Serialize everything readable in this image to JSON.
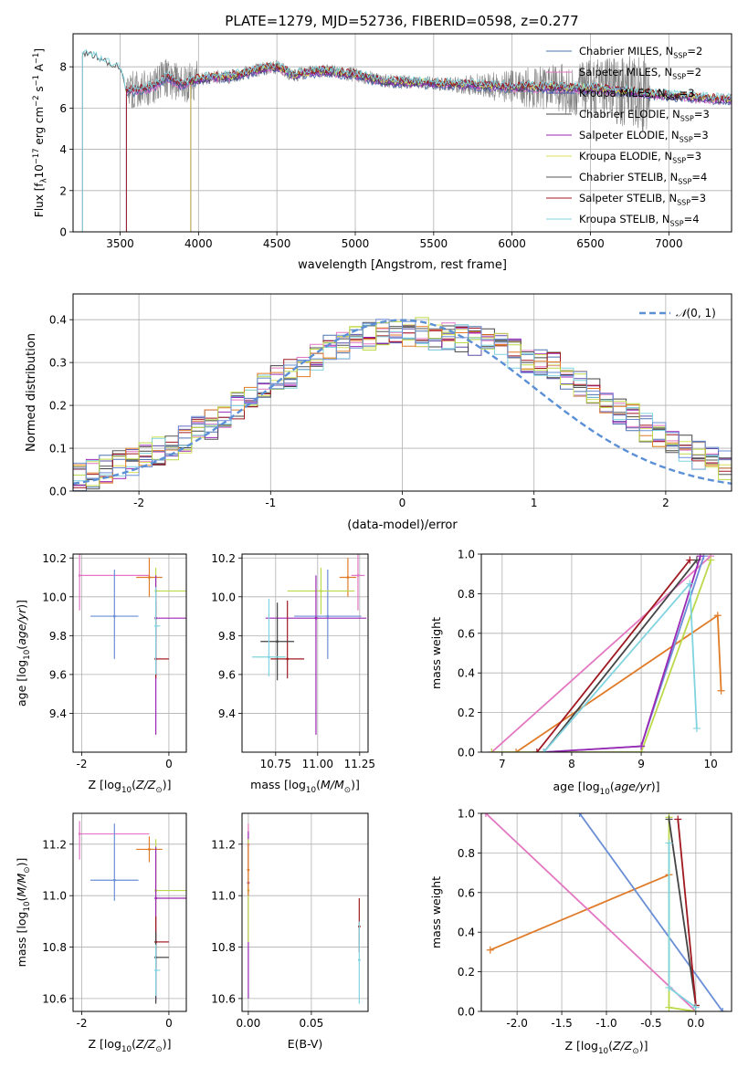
{
  "figure": {
    "title": "PLATE=1279, MJD=52736, FIBERID=0598, z=0.277"
  },
  "colors": [
    "#4c72b0",
    "#e377c2",
    "#5b4fa8",
    "#444444",
    "#9b27b5",
    "#d8e15a",
    "#555555",
    "#a01820",
    "#80d4df",
    "#e07b28",
    "#bcd94a",
    "#6a8fd6",
    "#808080"
  ],
  "chart_data": [
    {
      "id": "spectrum",
      "type": "line",
      "xlabel": "wavelength [Angstrom, rest frame]",
      "ylabel": "Flux [f$_\\lambda$10$^{-17}$ erg cm$^{-2}$ s$^{-1}$ A$^{-1}$]",
      "ylabel_parts": [
        "Flux [f",
        "λ",
        "10",
        "−17",
        " erg cm",
        "−2",
        " s",
        "−1",
        " A",
        "−1",
        "]"
      ],
      "xlim": [
        3200,
        7400
      ],
      "ylim": [
        0,
        9.6
      ],
      "xticks": [
        3500,
        4000,
        4500,
        5000,
        5500,
        6000,
        6500,
        7000
      ],
      "yticks": [
        0,
        2,
        4,
        6,
        8
      ],
      "legend_position": "upper right",
      "series": [
        {
          "name": "Chabrier MILES, N$_{SSP}$=2",
          "label_main": "Chabrier MILES, N",
          "label_sub": "SSP",
          "label_tail": "=2",
          "color": "#4c72b0",
          "xstart": 3540
        },
        {
          "name": "Salpeter MILES, N$_{SSP}$=2",
          "label_main": "Salpeter MILES, N",
          "label_sub": "SSP",
          "label_tail": "=2",
          "color": "#e377c2",
          "xstart": 3540
        },
        {
          "name": "Kroupa MILES, N$_{SSP}$=3",
          "label_main": "Kroupa MILES, N",
          "label_sub": "SSP",
          "label_tail": "=3",
          "color": "#5b4fa8",
          "xstart": 3540
        },
        {
          "name": "Chabrier ELODIE, N$_{SSP}$=3",
          "label_main": "Chabrier ELODIE, N",
          "label_sub": "SSP",
          "label_tail": "=3",
          "color": "#444444",
          "xstart": 3950
        },
        {
          "name": "Salpeter ELODIE, N$_{SSP}$=3",
          "label_main": "Salpeter ELODIE, N",
          "label_sub": "SSP",
          "label_tail": "=3",
          "color": "#9b27b5",
          "xstart": 3950
        },
        {
          "name": "Kroupa ELODIE, N$_{SSP}$=3",
          "label_main": "Kroupa ELODIE, N",
          "label_sub": "SSP",
          "label_tail": "=3",
          "color": "#d8e15a",
          "xstart": 3950
        },
        {
          "name": "Chabrier STELIB, N$_{SSP}$=4",
          "label_main": "Chabrier STELIB, N",
          "label_sub": "SSP",
          "label_tail": "=4",
          "color": "#555555",
          "xstart": 3260
        },
        {
          "name": "Salpeter STELIB, N$_{SSP}$=3",
          "label_main": "Salpeter STELIB, N",
          "label_sub": "SSP",
          "label_tail": "=3",
          "color": "#a01820",
          "xstart": 3540
        },
        {
          "name": "Kroupa STELIB, N$_{SSP}$=4",
          "label_main": "Kroupa STELIB, N",
          "label_sub": "SSP",
          "label_tail": "=4",
          "color": "#80d4df",
          "xstart": 3260
        }
      ],
      "data_color": "#808080",
      "data_xrange": [
        3540,
        6880
      ],
      "continuum": [
        [
          3260,
          8.6
        ],
        [
          3320,
          8.55
        ],
        [
          3400,
          8.2
        ],
        [
          3500,
          7.9
        ],
        [
          3540,
          6.8
        ],
        [
          3700,
          7.0
        ],
        [
          3800,
          7.5
        ],
        [
          3900,
          7.1
        ],
        [
          4000,
          7.4
        ],
        [
          4100,
          7.5
        ],
        [
          4200,
          7.5
        ],
        [
          4300,
          7.7
        ],
        [
          4400,
          7.9
        ],
        [
          4500,
          8.0
        ],
        [
          4600,
          7.6
        ],
        [
          4800,
          7.8
        ],
        [
          5000,
          7.6
        ],
        [
          5200,
          7.3
        ],
        [
          5500,
          7.2
        ],
        [
          5800,
          7.1
        ],
        [
          6000,
          7.0
        ],
        [
          6300,
          7.0
        ],
        [
          6600,
          6.9
        ],
        [
          7000,
          6.6
        ],
        [
          7400,
          6.4
        ]
      ]
    },
    {
      "id": "residuals",
      "type": "histogram",
      "xlabel": "(data-model)/error",
      "ylabel": "Normed distribution",
      "xlim": [
        -2.5,
        2.5
      ],
      "ylim": [
        0,
        0.46
      ],
      "xticks": [
        -2,
        -1,
        0,
        1,
        2
      ],
      "yticks": [
        0.0,
        0.1,
        0.2,
        0.3,
        0.4
      ],
      "bin_width": 0.1,
      "legend_label_prefix": "𝒩",
      "legend_label_args": "(0, 1)",
      "legend_position": "upper right",
      "gaussian": {
        "mean": 0,
        "sigma": 1,
        "color": "#5b8fd6"
      },
      "envelope": [
        0.035,
        0.04,
        0.05,
        0.06,
        0.07,
        0.08,
        0.095,
        0.105,
        0.12,
        0.14,
        0.155,
        0.175,
        0.2,
        0.215,
        0.24,
        0.26,
        0.275,
        0.3,
        0.31,
        0.33,
        0.34,
        0.35,
        0.36,
        0.37,
        0.37,
        0.37,
        0.37,
        0.36,
        0.36,
        0.355,
        0.35,
        0.345,
        0.335,
        0.32,
        0.31,
        0.3,
        0.29,
        0.27,
        0.255,
        0.235,
        0.215,
        0.19,
        0.17,
        0.15,
        0.13,
        0.11,
        0.1,
        0.085,
        0.07,
        0.06
      ],
      "hist_colors": [
        "#4c72b0",
        "#e377c2",
        "#5b4fa8",
        "#444444",
        "#9b27b5",
        "#d8e15a",
        "#555555",
        "#a01820",
        "#80d4df",
        "#e07b28",
        "#bcd94a",
        "#6a8fd6"
      ]
    },
    {
      "id": "age-vs-Z",
      "type": "scatter",
      "xlabel": "Z [log$_{10}$(Z/Z$_\\odot$)]",
      "ylabel": "age [log$_{10}$(age/yr)]",
      "xlim": [
        -2.2,
        0.4
      ],
      "ylim": [
        9.2,
        10.22
      ],
      "xticks": [
        -2,
        0
      ],
      "yticks": [
        9.4,
        9.6,
        9.8,
        10.0,
        10.2
      ],
      "points": [
        {
          "x": -2.05,
          "y": 10.11,
          "xerr": [
            0,
            1.6
          ],
          "yerr": [
            0.18,
            0.12
          ],
          "color": "#e377c2"
        },
        {
          "x": -1.25,
          "y": 9.9,
          "xerr": [
            0.55,
            0.55
          ],
          "yerr": [
            0.22,
            0.24
          ],
          "color": "#6a8fd6"
        },
        {
          "x": -0.45,
          "y": 10.1,
          "xerr": [
            0.3,
            0.3
          ],
          "yerr": [
            0.1,
            0.1
          ],
          "color": "#e07b28"
        },
        {
          "x": -0.3,
          "y": 10.03,
          "xerr": [
            0,
            0.75
          ],
          "yerr": [
            0.12,
            0.12
          ],
          "color": "#bcd94a"
        },
        {
          "x": -0.3,
          "y": 9.89,
          "xerr": [
            0,
            0.75
          ],
          "yerr": [
            0.6,
            0.22
          ],
          "color": "#9b27b5"
        },
        {
          "x": -0.3,
          "y": 9.68,
          "xerr": [
            0,
            0.3
          ],
          "yerr": [
            0.1,
            0.3
          ],
          "color": "#a01820"
        },
        {
          "x": -0.3,
          "y": 9.85,
          "xerr": [
            0,
            0.1
          ],
          "yerr": [
            0.25,
            0.2
          ],
          "color": "#80d4df"
        }
      ]
    },
    {
      "id": "age-vs-mass",
      "type": "scatter",
      "xlabel": "mass [log$_{10}$(M/M$_\\odot$)]",
      "ylabel": "",
      "xlim": [
        10.55,
        11.3
      ],
      "ylim": [
        9.2,
        10.22
      ],
      "xticks": [
        10.75,
        11.0,
        11.25
      ],
      "yticks": [
        9.4,
        9.6,
        9.8,
        10.0,
        10.2
      ],
      "points": [
        {
          "x": 11.24,
          "y": 10.11,
          "xerr": [
            0.04,
            0.04
          ],
          "yerr": [
            0.18,
            0.12
          ],
          "color": "#e377c2"
        },
        {
          "x": 11.06,
          "y": 9.9,
          "xerr": [
            0.2,
            0.2
          ],
          "yerr": [
            0.22,
            0.24
          ],
          "color": "#6a8fd6"
        },
        {
          "x": 11.18,
          "y": 10.1,
          "xerr": [
            0.05,
            0.05
          ],
          "yerr": [
            0.1,
            0.1
          ],
          "color": "#e07b28"
        },
        {
          "x": 11.02,
          "y": 10.03,
          "xerr": [
            0.2,
            0.2
          ],
          "yerr": [
            0.12,
            0.12
          ],
          "color": "#bcd94a"
        },
        {
          "x": 10.99,
          "y": 9.89,
          "xerr": [
            0.3,
            0.3
          ],
          "yerr": [
            0.6,
            0.22
          ],
          "color": "#9b27b5"
        },
        {
          "x": 10.82,
          "y": 9.68,
          "xerr": [
            0.1,
            0.1
          ],
          "yerr": [
            0.1,
            0.3
          ],
          "color": "#a01820"
        },
        {
          "x": 10.76,
          "y": 9.77,
          "xerr": [
            0.1,
            0.1
          ],
          "yerr": [
            0.2,
            0.2
          ],
          "color": "#444444"
        },
        {
          "x": 10.71,
          "y": 9.69,
          "xerr": [
            0.1,
            0.1
          ],
          "yerr": [
            0.1,
            0.3
          ],
          "color": "#80d4df"
        }
      ]
    },
    {
      "id": "massweight-vs-age",
      "type": "line",
      "xlabel": "age  [log$_{10}$(age/yr)]",
      "ylabel": "mass weight",
      "xlim": [
        6.7,
        10.3
      ],
      "ylim": [
        0,
        1.0
      ],
      "xticks": [
        7,
        8,
        9,
        10
      ],
      "yticks": [
        0.0,
        0.2,
        0.4,
        0.6,
        0.8,
        1.0
      ],
      "series": [
        {
          "color": "#e07b28",
          "points": [
            [
              7.2,
              0
            ],
            [
              10.1,
              0.69
            ],
            [
              10.15,
              0.31
            ]
          ]
        },
        {
          "color": "#e377c2",
          "points": [
            [
              6.85,
              0
            ],
            [
              10.0,
              0.99
            ]
          ]
        },
        {
          "color": "#6a8fd6",
          "points": [
            [
              7.6,
              0
            ],
            [
              9.0,
              0.03
            ],
            [
              9.9,
              0.99
            ]
          ]
        },
        {
          "color": "#bcd94a",
          "points": [
            [
              6.85,
              0
            ],
            [
              9.0,
              0
            ],
            [
              10.0,
              0.97
            ]
          ]
        },
        {
          "color": "#9b27b5",
          "points": [
            [
              7.6,
              0
            ],
            [
              9.0,
              0.03
            ],
            [
              9.85,
              0.99
            ]
          ]
        },
        {
          "color": "#a01820",
          "points": [
            [
              7.5,
              0
            ],
            [
              9.7,
              0.97
            ]
          ]
        },
        {
          "color": "#444444",
          "points": [
            [
              7.6,
              0
            ],
            [
              9.8,
              0.97
            ]
          ]
        },
        {
          "color": "#80d4df",
          "points": [
            [
              7.6,
              0
            ],
            [
              9.7,
              0.85
            ],
            [
              9.8,
              0.12
            ]
          ]
        }
      ]
    },
    {
      "id": "mass-vs-Z",
      "type": "scatter",
      "xlabel": "Z [log$_{10}$(Z/Z$_\\odot$)]",
      "ylabel": "mass [log$_{10}$(M/M$_\\odot$)]",
      "xlim": [
        -2.2,
        0.4
      ],
      "ylim": [
        10.55,
        11.32
      ],
      "xticks": [
        -2,
        0
      ],
      "yticks": [
        10.6,
        10.8,
        11.0,
        11.2
      ],
      "points": [
        {
          "x": -2.05,
          "y": 11.24,
          "xerr": [
            0,
            1.6
          ],
          "yerr": [
            0.1,
            0.05
          ],
          "color": "#e377c2"
        },
        {
          "x": -1.25,
          "y": 11.06,
          "xerr": [
            0.55,
            0.55
          ],
          "yerr": [
            0.08,
            0.22
          ],
          "color": "#6a8fd6"
        },
        {
          "x": -0.45,
          "y": 11.18,
          "xerr": [
            0.3,
            0.3
          ],
          "yerr": [
            0.05,
            0.05
          ],
          "color": "#e07b28"
        },
        {
          "x": -0.3,
          "y": 11.02,
          "xerr": [
            0,
            0.75
          ],
          "yerr": [
            0.2,
            0.2
          ],
          "color": "#bcd94a"
        },
        {
          "x": -0.3,
          "y": 10.99,
          "xerr": [
            0,
            0.75
          ],
          "yerr": [
            0.4,
            0.2
          ],
          "color": "#9b27b5"
        },
        {
          "x": -0.3,
          "y": 10.82,
          "xerr": [
            0,
            0.3
          ],
          "yerr": [
            0.1,
            0.1
          ],
          "color": "#a01820"
        },
        {
          "x": -0.3,
          "y": 10.76,
          "xerr": [
            0,
            0.3
          ],
          "yerr": [
            0.18,
            0.1
          ],
          "color": "#444444"
        },
        {
          "x": -0.3,
          "y": 10.71,
          "xerr": [
            0,
            0.1
          ],
          "yerr": [
            0.1,
            0.1
          ],
          "color": "#80d4df"
        }
      ]
    },
    {
      "id": "mass-vs-EBV",
      "type": "scatter",
      "xlabel": "E(B-V)",
      "ylabel": "",
      "xlim": [
        -0.005,
        0.095
      ],
      "ylim": [
        10.55,
        11.32
      ],
      "xticks": [
        0.0,
        0.05
      ],
      "yticks": [
        10.6,
        10.8,
        11.0,
        11.2
      ],
      "points": [
        {
          "x": 0.0,
          "y": 11.2,
          "xerr": [
            0,
            0
          ],
          "yerr": [
            0.1,
            0.08
          ],
          "color": "#e377c2"
        },
        {
          "x": 0.0,
          "y": 11.05,
          "xerr": [
            0,
            0
          ],
          "yerr": [
            0.45,
            0.2
          ],
          "color": "#9b27b5"
        },
        {
          "x": 0.0,
          "y": 11.02,
          "xerr": [
            0,
            0
          ],
          "yerr": [
            0.2,
            0.2
          ],
          "color": "#bcd94a"
        },
        {
          "x": 0.0,
          "y": 11.1,
          "xerr": [
            0,
            0
          ],
          "yerr": [
            0.1,
            0.1
          ],
          "color": "#e07b28"
        },
        {
          "x": 0.088,
          "y": 10.88,
          "xerr": [
            0,
            0
          ],
          "yerr": [
            0.1,
            0.11
          ],
          "color": "#a01820"
        },
        {
          "x": 0.088,
          "y": 10.75,
          "xerr": [
            0,
            0
          ],
          "yerr": [
            0.17,
            0.15
          ],
          "color": "#80d4df"
        }
      ]
    },
    {
      "id": "massweight-vs-Z",
      "type": "line",
      "xlabel": "Z [log$_{10}$(Z/Z$_\\odot$)]",
      "ylabel": "mass weight",
      "xlim": [
        -2.4,
        0.4
      ],
      "ylim": [
        0,
        1.0
      ],
      "xticks": [
        -2.0,
        -1.5,
        -1.0,
        -0.5,
        0.0
      ],
      "yticks": [
        0.0,
        0.2,
        0.4,
        0.6,
        0.8,
        1.0
      ],
      "series": [
        {
          "color": "#e07b28",
          "points": [
            [
              -2.3,
              0.31
            ],
            [
              -0.3,
              0.69
            ]
          ]
        },
        {
          "color": "#e377c2",
          "points": [
            [
              -2.35,
              1.0
            ],
            [
              0.0,
              0.0
            ]
          ]
        },
        {
          "color": "#6a8fd6",
          "points": [
            [
              -1.3,
              1.0
            ],
            [
              0.3,
              0.0
            ]
          ]
        },
        {
          "color": "#bcd94a",
          "points": [
            [
              -0.3,
              0.98
            ],
            [
              -0.3,
              0.02
            ],
            [
              0.0,
              0.0
            ]
          ]
        },
        {
          "color": "#444444",
          "points": [
            [
              -0.3,
              0.97
            ],
            [
              0.0,
              0.03
            ]
          ]
        },
        {
          "color": "#a01820",
          "points": [
            [
              -0.2,
              0.97
            ],
            [
              0.0,
              0.03
            ]
          ]
        },
        {
          "color": "#80d4df",
          "points": [
            [
              -0.3,
              0.85
            ],
            [
              -0.3,
              0.12
            ],
            [
              0.0,
              0.02
            ]
          ]
        }
      ]
    }
  ]
}
